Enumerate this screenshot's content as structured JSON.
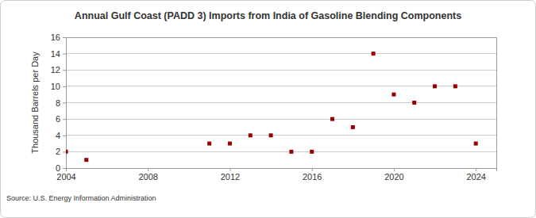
{
  "chart_data": {
    "type": "scatter",
    "title": "Annual Gulf Coast (PADD 3) Imports from India of Gasoline Blending Components",
    "y_label": "Thousand Barrels per Day",
    "source": "Source: U.S. Energy Information Administration",
    "x": [
      2004,
      2005,
      2011,
      2012,
      2013,
      2014,
      2015,
      2016,
      2017,
      2018,
      2019,
      2020,
      2021,
      2022,
      2023,
      2024
    ],
    "values": [
      2,
      1,
      3,
      3,
      4,
      4,
      2,
      2,
      6,
      5,
      14,
      9,
      8,
      10,
      10,
      3
    ],
    "color": "#990000",
    "marker": "square",
    "xlim": [
      2004,
      2025
    ],
    "xticks": [
      2004,
      2008,
      2012,
      2016,
      2020,
      2024
    ],
    "ylim": [
      0,
      16
    ],
    "yticks": [
      0,
      2,
      4,
      6,
      8,
      10,
      12,
      14,
      16
    ],
    "grid": true
  }
}
